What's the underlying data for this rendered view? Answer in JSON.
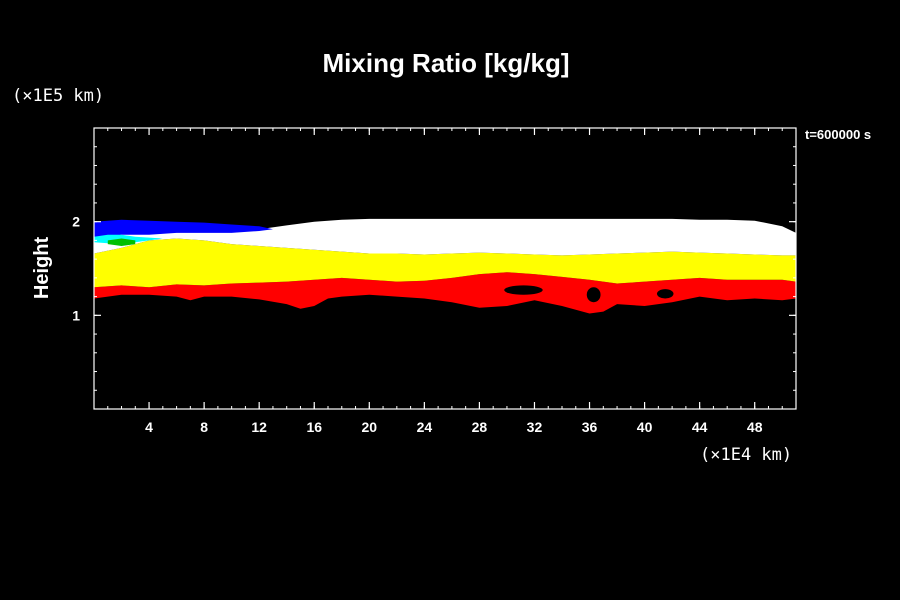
{
  "chart_data": {
    "type": "heatmap",
    "title": "Mixing Ratio [kg/kg]",
    "ylabel": "Height",
    "y_unit": "(×1E5 km)",
    "x_unit": "(×1E4 km)",
    "time_label": "t=600000 s",
    "xlim": [
      0,
      51
    ],
    "ylim": [
      0,
      3
    ],
    "x_ticks": [
      4,
      8,
      12,
      16,
      20,
      24,
      28,
      32,
      36,
      40,
      44,
      48
    ],
    "y_ticks": [
      1,
      2
    ],
    "x_minor_step": 1,
    "y_minor_step": 0.2,
    "layers": [
      {
        "color": "#ff0000",
        "top": [
          [
            0,
            1.3
          ],
          [
            2,
            1.32
          ],
          [
            4,
            1.3
          ],
          [
            6,
            1.33
          ],
          [
            8,
            1.32
          ],
          [
            10,
            1.34
          ],
          [
            12,
            1.35
          ],
          [
            14,
            1.36
          ],
          [
            16,
            1.38
          ],
          [
            18,
            1.4
          ],
          [
            20,
            1.38
          ],
          [
            22,
            1.36
          ],
          [
            24,
            1.37
          ],
          [
            26,
            1.4
          ],
          [
            28,
            1.44
          ],
          [
            30,
            1.46
          ],
          [
            32,
            1.44
          ],
          [
            34,
            1.41
          ],
          [
            36,
            1.38
          ],
          [
            38,
            1.34
          ],
          [
            40,
            1.36
          ],
          [
            42,
            1.38
          ],
          [
            44,
            1.4
          ],
          [
            46,
            1.38
          ],
          [
            48,
            1.38
          ],
          [
            50,
            1.38
          ],
          [
            51,
            1.36
          ]
        ],
        "bottom": [
          [
            0,
            1.18
          ],
          [
            2,
            1.22
          ],
          [
            4,
            1.22
          ],
          [
            6,
            1.2
          ],
          [
            7,
            1.16
          ],
          [
            8,
            1.2
          ],
          [
            10,
            1.2
          ],
          [
            12,
            1.17
          ],
          [
            14,
            1.12
          ],
          [
            15,
            1.07
          ],
          [
            16,
            1.1
          ],
          [
            17,
            1.18
          ],
          [
            18,
            1.2
          ],
          [
            20,
            1.22
          ],
          [
            22,
            1.2
          ],
          [
            24,
            1.18
          ],
          [
            26,
            1.14
          ],
          [
            28,
            1.08
          ],
          [
            30,
            1.1
          ],
          [
            32,
            1.16
          ],
          [
            34,
            1.1
          ],
          [
            36,
            1.02
          ],
          [
            37,
            1.04
          ],
          [
            38,
            1.12
          ],
          [
            40,
            1.1
          ],
          [
            42,
            1.14
          ],
          [
            44,
            1.2
          ],
          [
            46,
            1.16
          ],
          [
            48,
            1.18
          ],
          [
            50,
            1.16
          ],
          [
            51,
            1.18
          ]
        ]
      },
      {
        "color": "#ffff00",
        "top": [
          [
            0,
            1.66
          ],
          [
            2,
            1.72
          ],
          [
            4,
            1.8
          ],
          [
            6,
            1.82
          ],
          [
            8,
            1.8
          ],
          [
            10,
            1.76
          ],
          [
            12,
            1.74
          ],
          [
            14,
            1.72
          ],
          [
            16,
            1.7
          ],
          [
            18,
            1.68
          ],
          [
            20,
            1.66
          ],
          [
            22,
            1.66
          ],
          [
            24,
            1.65
          ],
          [
            26,
            1.66
          ],
          [
            28,
            1.67
          ],
          [
            30,
            1.66
          ],
          [
            32,
            1.65
          ],
          [
            34,
            1.64
          ],
          [
            36,
            1.65
          ],
          [
            38,
            1.66
          ],
          [
            40,
            1.67
          ],
          [
            42,
            1.68
          ],
          [
            44,
            1.67
          ],
          [
            46,
            1.66
          ],
          [
            48,
            1.65
          ],
          [
            50,
            1.64
          ],
          [
            51,
            1.64
          ]
        ],
        "bottom": [
          [
            0,
            1.3
          ],
          [
            2,
            1.32
          ],
          [
            4,
            1.3
          ],
          [
            6,
            1.33
          ],
          [
            8,
            1.32
          ],
          [
            10,
            1.34
          ],
          [
            12,
            1.35
          ],
          [
            14,
            1.36
          ],
          [
            16,
            1.38
          ],
          [
            18,
            1.4
          ],
          [
            20,
            1.38
          ],
          [
            22,
            1.36
          ],
          [
            24,
            1.37
          ],
          [
            26,
            1.4
          ],
          [
            28,
            1.44
          ],
          [
            30,
            1.46
          ],
          [
            32,
            1.44
          ],
          [
            34,
            1.41
          ],
          [
            36,
            1.38
          ],
          [
            38,
            1.34
          ],
          [
            40,
            1.36
          ],
          [
            42,
            1.38
          ],
          [
            44,
            1.4
          ],
          [
            46,
            1.38
          ],
          [
            48,
            1.38
          ],
          [
            50,
            1.38
          ],
          [
            51,
            1.36
          ]
        ]
      },
      {
        "color": "#ffffff",
        "top": [
          [
            0,
            1.85
          ],
          [
            2,
            1.88
          ],
          [
            4,
            1.88
          ],
          [
            6,
            1.9
          ],
          [
            8,
            1.9
          ],
          [
            10,
            1.9
          ],
          [
            12,
            1.92
          ],
          [
            14,
            1.96
          ],
          [
            16,
            2.0
          ],
          [
            18,
            2.02
          ],
          [
            20,
            2.03
          ],
          [
            22,
            2.03
          ],
          [
            24,
            2.03
          ],
          [
            26,
            2.03
          ],
          [
            28,
            2.03
          ],
          [
            30,
            2.03
          ],
          [
            32,
            2.03
          ],
          [
            34,
            2.03
          ],
          [
            36,
            2.03
          ],
          [
            38,
            2.03
          ],
          [
            40,
            2.03
          ],
          [
            42,
            2.03
          ],
          [
            44,
            2.02
          ],
          [
            46,
            2.02
          ],
          [
            48,
            2.01
          ],
          [
            50,
            1.95
          ],
          [
            51,
            1.88
          ]
        ],
        "bottom": [
          [
            0,
            1.66
          ],
          [
            2,
            1.72
          ],
          [
            4,
            1.8
          ],
          [
            6,
            1.82
          ],
          [
            8,
            1.8
          ],
          [
            10,
            1.76
          ],
          [
            12,
            1.74
          ],
          [
            14,
            1.72
          ],
          [
            16,
            1.7
          ],
          [
            18,
            1.68
          ],
          [
            20,
            1.66
          ],
          [
            22,
            1.66
          ],
          [
            24,
            1.65
          ],
          [
            26,
            1.66
          ],
          [
            28,
            1.67
          ],
          [
            30,
            1.66
          ],
          [
            32,
            1.65
          ],
          [
            34,
            1.64
          ],
          [
            36,
            1.65
          ],
          [
            38,
            1.66
          ],
          [
            40,
            1.67
          ],
          [
            42,
            1.68
          ],
          [
            44,
            1.67
          ],
          [
            46,
            1.66
          ],
          [
            48,
            1.65
          ],
          [
            50,
            1.64
          ],
          [
            51,
            1.64
          ]
        ]
      },
      {
        "color": "#0000ff",
        "top": [
          [
            0,
            2.0
          ],
          [
            2,
            2.02
          ],
          [
            4,
            2.01
          ],
          [
            6,
            2.0
          ],
          [
            8,
            1.99
          ],
          [
            10,
            1.97
          ],
          [
            12,
            1.95
          ],
          [
            13,
            1.92
          ]
        ],
        "bottom": [
          [
            0,
            1.82
          ],
          [
            2,
            1.86
          ],
          [
            4,
            1.86
          ],
          [
            6,
            1.88
          ],
          [
            8,
            1.88
          ],
          [
            10,
            1.88
          ],
          [
            12,
            1.9
          ],
          [
            13,
            1.92
          ]
        ]
      },
      {
        "color": "#00ffff",
        "top": [
          [
            0,
            1.84
          ],
          [
            1,
            1.86
          ],
          [
            2,
            1.86
          ],
          [
            3,
            1.84
          ],
          [
            4,
            1.83
          ],
          [
            5,
            1.82
          ]
        ],
        "bottom": [
          [
            0,
            1.78
          ],
          [
            1,
            1.77
          ],
          [
            2,
            1.76
          ],
          [
            3,
            1.78
          ],
          [
            4,
            1.8
          ],
          [
            5,
            1.82
          ]
        ]
      },
      {
        "color": "#00c000",
        "top": [
          [
            1,
            1.8
          ],
          [
            2,
            1.82
          ],
          [
            3,
            1.8
          ]
        ],
        "bottom": [
          [
            1,
            1.76
          ],
          [
            2,
            1.74
          ],
          [
            3,
            1.76
          ]
        ]
      }
    ],
    "holes": [
      {
        "color": "#000000",
        "center": [
          31.2,
          1.27
        ],
        "radius": [
          1.4,
          0.05
        ]
      },
      {
        "color": "#000000",
        "center": [
          36.3,
          1.22
        ],
        "radius": [
          0.5,
          0.08
        ]
      },
      {
        "color": "#000000",
        "center": [
          41.5,
          1.23
        ],
        "radius": [
          0.6,
          0.05
        ]
      }
    ]
  }
}
